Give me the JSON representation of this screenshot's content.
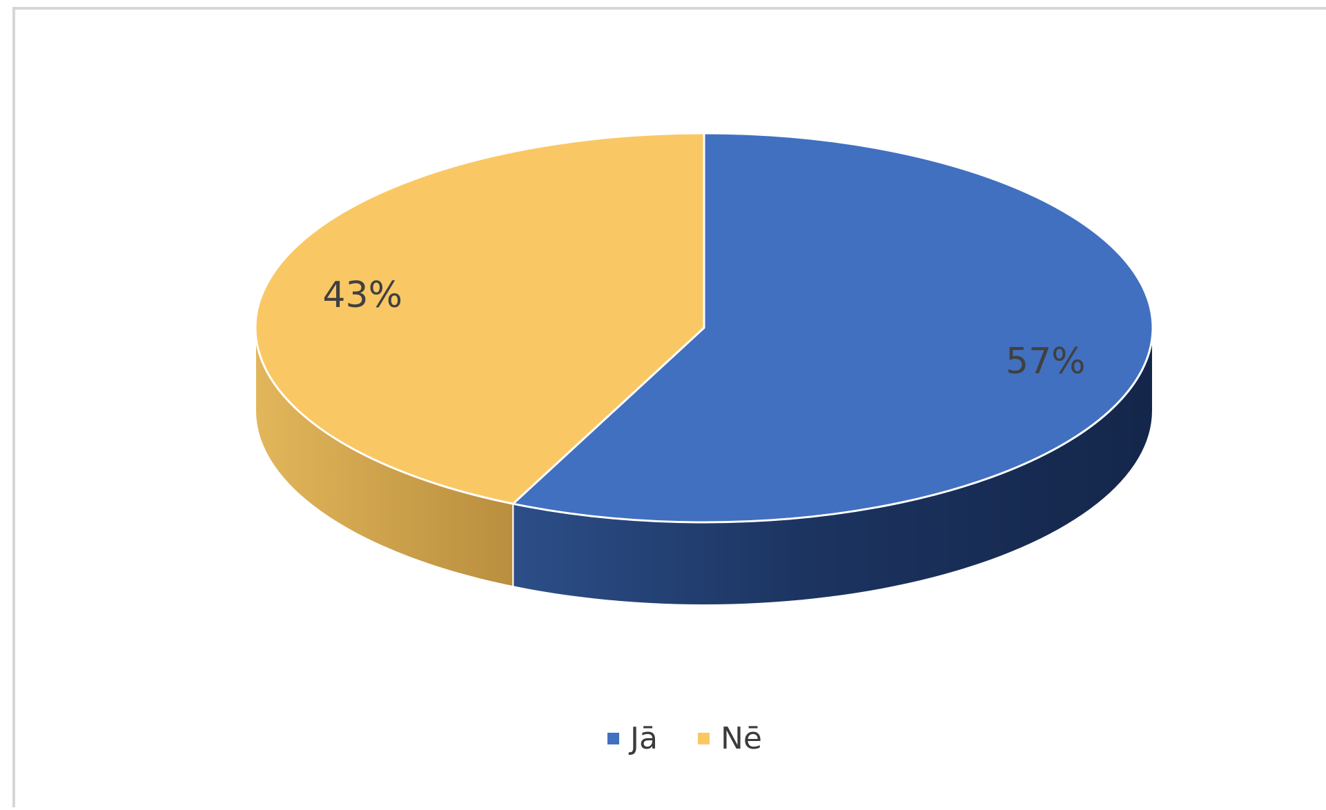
{
  "chart_data": {
    "type": "pie",
    "style": "3d",
    "slices": [
      {
        "label": "Jā",
        "value": 57,
        "value_label": "57%",
        "color": "#4170c0",
        "side_color": "#1f3a6b"
      },
      {
        "label": "Nē",
        "value": 43,
        "value_label": "43%",
        "color": "#f9c865",
        "side_color": "#d4a94e"
      }
    ],
    "legend_position": "bottom",
    "label_color": "#404040",
    "legend": [
      {
        "label": "Jā",
        "color": "#4170c0"
      },
      {
        "label": "Nē",
        "color": "#f9c865"
      }
    ]
  }
}
